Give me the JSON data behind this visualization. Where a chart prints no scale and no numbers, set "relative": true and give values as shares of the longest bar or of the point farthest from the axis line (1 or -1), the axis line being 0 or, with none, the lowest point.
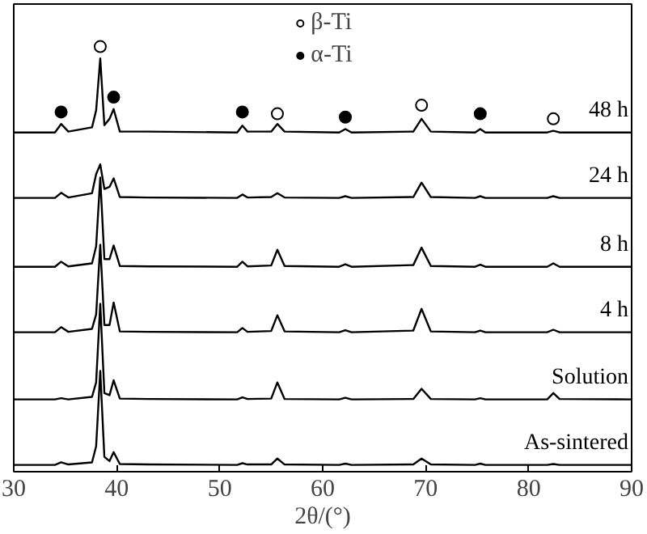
{
  "chart_data": {
    "type": "line",
    "relative": true,
    "xlabel": "2θ/(°)",
    "x": [
      30,
      34,
      34.6,
      35.3,
      37.6,
      38.0,
      38.4,
      38.8,
      39.3,
      39.7,
      40.3,
      43,
      51.7,
      52.2,
      52.7,
      55,
      55.6,
      56.3,
      61.6,
      62.2,
      62.8,
      68.8,
      69.6,
      70.5,
      74.8,
      75.3,
      75.8,
      81.8,
      82.4,
      83,
      90
    ],
    "annotations": [
      "48 h",
      "24 h",
      "8 h",
      "4 h",
      "Solution",
      "As-sintered"
    ],
    "xlim": [
      30,
      90
    ],
    "xticks": [
      30,
      40,
      50,
      60,
      70,
      80,
      90
    ],
    "grid": false,
    "legend": "top",
    "marker": "none",
    "series": [
      {
        "color": "#000000",
        "values": [
          0.798,
          0.798,
          0.818,
          0.8,
          0.81,
          0.85,
          0.972,
          0.815,
          0.83,
          0.853,
          0.8,
          0.8,
          0.798,
          0.814,
          0.8,
          0.8,
          0.818,
          0.8,
          0.798,
          0.806,
          0.798,
          0.8,
          0.83,
          0.8,
          0.798,
          0.806,
          0.798,
          0.798,
          0.802,
          0.798,
          0.798
        ]
      },
      {
        "color": "#000000",
        "values": [
          0.644,
          0.644,
          0.656,
          0.645,
          0.655,
          0.7,
          0.723,
          0.665,
          0.67,
          0.69,
          0.646,
          0.645,
          0.644,
          0.652,
          0.645,
          0.646,
          0.655,
          0.645,
          0.644,
          0.648,
          0.644,
          0.646,
          0.68,
          0.646,
          0.644,
          0.648,
          0.644,
          0.644,
          0.648,
          0.644,
          0.644
        ]
      },
      {
        "color": "#000000",
        "values": [
          0.482,
          0.482,
          0.494,
          0.483,
          0.49,
          0.53,
          0.692,
          0.5,
          0.5,
          0.532,
          0.484,
          0.483,
          0.482,
          0.494,
          0.483,
          0.485,
          0.522,
          0.484,
          0.482,
          0.488,
          0.482,
          0.486,
          0.527,
          0.484,
          0.482,
          0.487,
          0.482,
          0.482,
          0.49,
          0.482,
          0.482
        ]
      },
      {
        "color": "#000000",
        "values": [
          0.328,
          0.328,
          0.34,
          0.329,
          0.336,
          0.37,
          0.534,
          0.345,
          0.345,
          0.398,
          0.33,
          0.329,
          0.328,
          0.338,
          0.329,
          0.331,
          0.368,
          0.33,
          0.328,
          0.333,
          0.328,
          0.332,
          0.383,
          0.33,
          0.328,
          0.332,
          0.328,
          0.328,
          0.334,
          0.328,
          0.328
        ]
      },
      {
        "color": "#000000",
        "values": [
          0.17,
          0.17,
          0.173,
          0.17,
          0.176,
          0.21,
          0.395,
          0.185,
          0.18,
          0.215,
          0.172,
          0.171,
          0.17,
          0.175,
          0.171,
          0.172,
          0.21,
          0.171,
          0.17,
          0.174,
          0.17,
          0.171,
          0.195,
          0.171,
          0.17,
          0.173,
          0.17,
          0.17,
          0.185,
          0.171,
          0.17
        ]
      },
      {
        "color": "#000000",
        "values": [
          0.016,
          0.016,
          0.022,
          0.017,
          0.022,
          0.06,
          0.237,
          0.035,
          0.025,
          0.046,
          0.018,
          0.017,
          0.016,
          0.02,
          0.017,
          0.017,
          0.031,
          0.017,
          0.016,
          0.019,
          0.016,
          0.017,
          0.031,
          0.017,
          0.016,
          0.019,
          0.016,
          0.016,
          0.018,
          0.016,
          0.016
        ]
      },
      {
        "name": "β-Ti",
        "type": "scatter",
        "marker": "circle",
        "color": "#ffffff",
        "x": [
          38.4,
          55.6,
          69.6,
          82.4
        ],
        "values": [
          1.0,
          0.842,
          0.862,
          0.83
        ]
      },
      {
        "name": "α-Ti",
        "type": "scatter",
        "marker": "circle",
        "color": "#000000",
        "x": [
          34.6,
          39.7,
          52.2,
          62.2,
          75.3
        ],
        "values": [
          0.846,
          0.881,
          0.846,
          0.834,
          0.842
        ]
      }
    ]
  }
}
